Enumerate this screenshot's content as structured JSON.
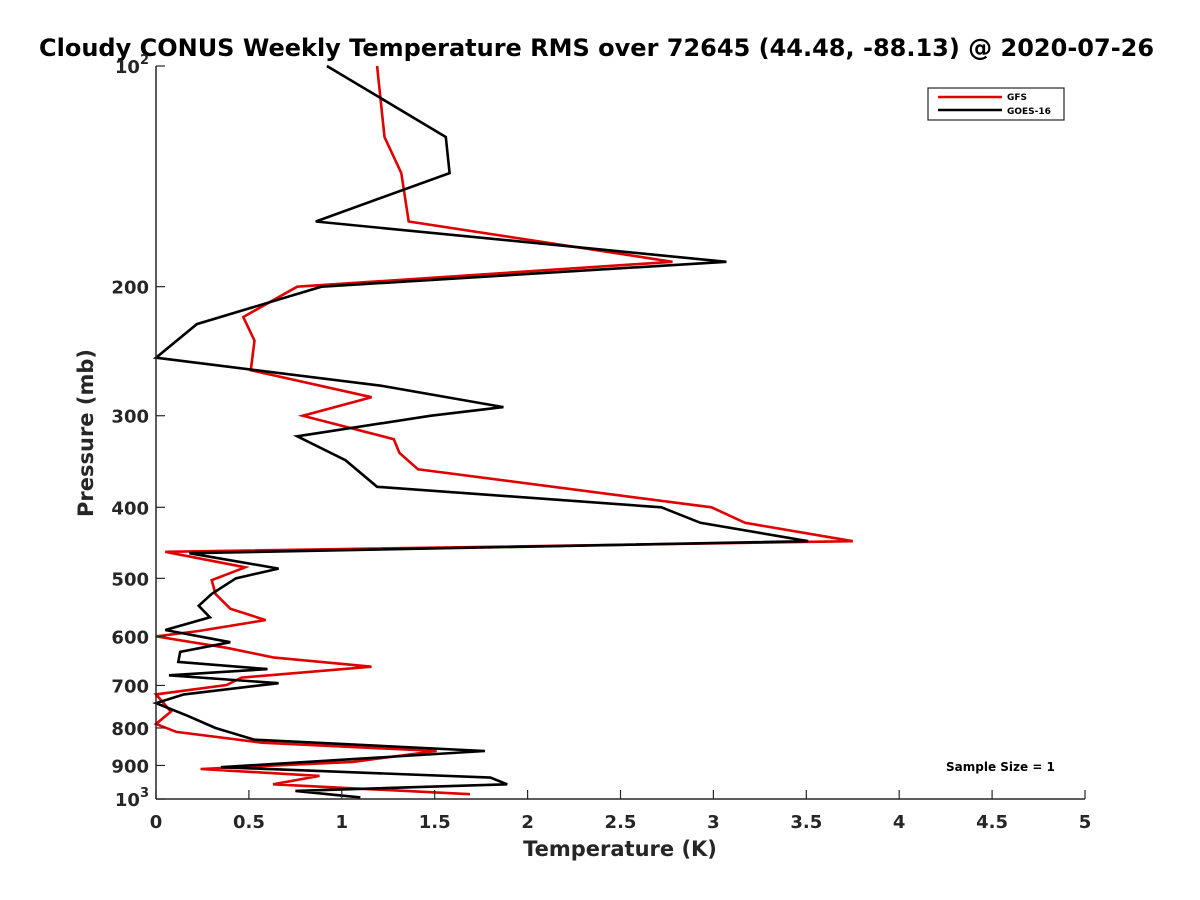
{
  "chart_data": {
    "type": "line",
    "title": "Cloudy CONUS Weekly Temperature RMS over 72645 (44.48, -88.13) @ 2020-07-26",
    "xlabel": "Temperature (K)",
    "ylabel": "Pressure (mb)",
    "xlim": [
      0,
      5
    ],
    "ylim": [
      100,
      1000
    ],
    "y_scale": "log",
    "y_reversed": true,
    "x_ticks": [
      "0",
      "0.5",
      "1",
      "1.5",
      "2",
      "2.5",
      "3",
      "3.5",
      "4",
      "4.5",
      "5"
    ],
    "y_ticks": [
      {
        "value": 100,
        "base": "10",
        "exp": "2"
      },
      {
        "value": 200,
        "label": "200"
      },
      {
        "value": 300,
        "label": "300"
      },
      {
        "value": 400,
        "label": "400"
      },
      {
        "value": 500,
        "label": "500"
      },
      {
        "value": 600,
        "label": "600"
      },
      {
        "value": 700,
        "label": "700"
      },
      {
        "value": 800,
        "label": "800"
      },
      {
        "value": 900,
        "label": "900"
      },
      {
        "value": 1000,
        "base": "10",
        "exp": "3"
      }
    ],
    "grid": false,
    "legend_position": "top-right",
    "series": [
      {
        "name": "GFS",
        "color": "#e00000",
        "points": [
          [
            1.19,
            100
          ],
          [
            1.23,
            125
          ],
          [
            1.32,
            140
          ],
          [
            1.36,
            163
          ],
          [
            2.78,
            185
          ],
          [
            0.76,
            200
          ],
          [
            0.47,
            220
          ],
          [
            0.53,
            237
          ],
          [
            0.51,
            260
          ],
          [
            1.16,
            283
          ],
          [
            0.79,
            300
          ],
          [
            1.28,
            323
          ],
          [
            1.31,
            337
          ],
          [
            1.41,
            355
          ],
          [
            2.99,
            400
          ],
          [
            3.17,
            420
          ],
          [
            3.75,
            445
          ],
          [
            0.05,
            460
          ],
          [
            0.48,
            483
          ],
          [
            0.3,
            503
          ],
          [
            0.32,
            525
          ],
          [
            0.4,
            550
          ],
          [
            0.59,
            570
          ],
          [
            0.23,
            590
          ],
          [
            0.0,
            600
          ],
          [
            0.38,
            622
          ],
          [
            0.63,
            641
          ],
          [
            1.16,
            660
          ],
          [
            0.46,
            683
          ],
          [
            0.38,
            699
          ],
          [
            0.0,
            720
          ],
          [
            0.08,
            760
          ],
          [
            0.0,
            790
          ],
          [
            0.11,
            810
          ],
          [
            0.57,
            838
          ],
          [
            1.51,
            860
          ],
          [
            1.06,
            890
          ],
          [
            0.24,
            910
          ],
          [
            0.88,
            930
          ],
          [
            0.63,
            955
          ],
          [
            1.69,
            985
          ]
        ]
      },
      {
        "name": "GOES-16",
        "color": "#000000",
        "points": [
          [
            0.92,
            100
          ],
          [
            1.56,
            125
          ],
          [
            1.58,
            140
          ],
          [
            0.86,
            163
          ],
          [
            3.07,
            185
          ],
          [
            0.89,
            200
          ],
          [
            0.22,
            225
          ],
          [
            0.0,
            250
          ],
          [
            1.21,
            273
          ],
          [
            1.87,
            292
          ],
          [
            1.48,
            300
          ],
          [
            0.76,
            320
          ],
          [
            1.02,
            345
          ],
          [
            1.19,
            375
          ],
          [
            2.72,
            400
          ],
          [
            2.93,
            420
          ],
          [
            3.51,
            445
          ],
          [
            0.18,
            462
          ],
          [
            0.66,
            485
          ],
          [
            0.43,
            500
          ],
          [
            0.3,
            525
          ],
          [
            0.23,
            545
          ],
          [
            0.29,
            565
          ],
          [
            0.05,
            588
          ],
          [
            0.4,
            611
          ],
          [
            0.13,
            630
          ],
          [
            0.12,
            650
          ],
          [
            0.6,
            665
          ],
          [
            0.07,
            678
          ],
          [
            0.66,
            695
          ],
          [
            0.15,
            720
          ],
          [
            0.0,
            740
          ],
          [
            0.17,
            770
          ],
          [
            0.32,
            800
          ],
          [
            0.53,
            830
          ],
          [
            1.77,
            860
          ],
          [
            0.35,
            905
          ],
          [
            1.8,
            935
          ],
          [
            1.89,
            955
          ],
          [
            0.75,
            975
          ],
          [
            1.1,
            995
          ]
        ]
      }
    ],
    "annotation": "Sample Size = 1"
  }
}
